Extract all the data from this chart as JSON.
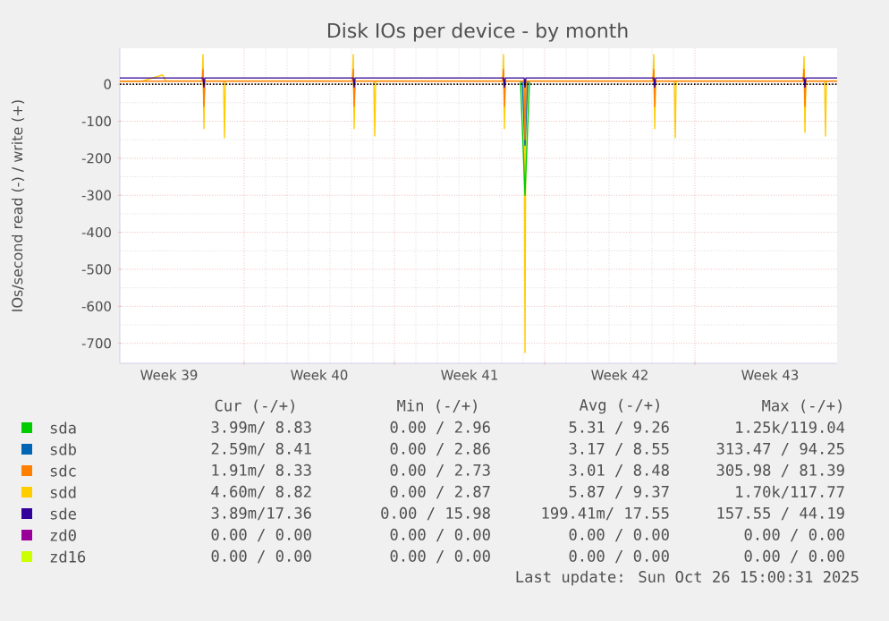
{
  "chart_data": {
    "type": "line",
    "title": "Disk IOs per device - by month",
    "ylabel": "IOs/second read (-) / write (+)",
    "xlim": [
      "2025-09-23T05:00",
      "2025-10-26T15:00"
    ],
    "ylim": [
      -754,
      97
    ],
    "xticks": [
      {
        "value": "2025-09-25T12:00",
        "label": "Week 39"
      },
      {
        "value": "2025-09-29",
        "label": null
      },
      {
        "value": "2025-10-02T12:00",
        "label": "Week 40"
      },
      {
        "value": "2025-10-06",
        "label": null
      },
      {
        "value": "2025-10-09T12:00",
        "label": "Week 41"
      },
      {
        "value": "2025-10-13",
        "label": null
      },
      {
        "value": "2025-10-16T12:00",
        "label": "Week 42"
      },
      {
        "value": "2025-10-20",
        "label": null
      },
      {
        "value": "2025-10-23T12:00",
        "label": "Week 43"
      }
    ],
    "yticks": [
      -700,
      -600,
      -500,
      -400,
      -300,
      -200,
      -100,
      0
    ],
    "grid": true,
    "legend": "bottom",
    "ref_lines": [
      {
        "axis": "y",
        "value": 0,
        "color": "#000000",
        "line_style": "dotted"
      }
    ],
    "series": [
      {
        "name": "sda",
        "color": "#00cc00",
        "x": [
          "2025-10-11T21:00",
          "2025-10-12T02:00",
          "2025-10-12T07:00"
        ],
        "values": [
          8,
          -300,
          8
        ]
      },
      {
        "name": "sdb",
        "color": "#0066b3",
        "x": [
          "2025-10-11T23:00",
          "2025-10-12T02:00",
          "2025-10-12T05:00"
        ],
        "values": [
          8,
          -165,
          8
        ]
      },
      {
        "name": "sdc",
        "color": "#ff7f00",
        "x": [
          "2025-09-23T05:00",
          "2025-09-27T01:00",
          "2025-09-27T02:00",
          "2025-09-27T03:00",
          "2025-09-27T04:00",
          "2025-10-04T01:00",
          "2025-10-04T02:00",
          "2025-10-04T03:00",
          "2025-10-04T04:00",
          "2025-10-11T01:00",
          "2025-10-11T02:00",
          "2025-10-11T03:00",
          "2025-10-11T04:00",
          "2025-10-12T01:00",
          "2025-10-12T02:00",
          "2025-10-12T03:00",
          "2025-10-18T01:00",
          "2025-10-18T02:00",
          "2025-10-18T03:00",
          "2025-10-18T04:00",
          "2025-10-25T01:00",
          "2025-10-25T02:00",
          "2025-10-25T03:00",
          "2025-10-25T04:00",
          "2025-10-26T15:00"
        ],
        "values": [
          8,
          8,
          40,
          -60,
          8,
          8,
          40,
          -60,
          8,
          8,
          40,
          -60,
          8,
          8,
          -150,
          8,
          8,
          40,
          -60,
          8,
          8,
          40,
          -60,
          8,
          8
        ]
      },
      {
        "name": "sdd",
        "color": "#ffcc00",
        "x": [
          "2025-09-23T05:00",
          "2025-09-24T05:00",
          "2025-09-25T05:00",
          "2025-09-25T08:00",
          "2025-09-27T01:00",
          "2025-09-27T02:00",
          "2025-09-27T03:00",
          "2025-09-27T04:00",
          "2025-09-28T01:00",
          "2025-09-28T02:00",
          "2025-09-28T03:00",
          "2025-10-04T01:00",
          "2025-10-04T02:00",
          "2025-10-04T03:00",
          "2025-10-04T04:00",
          "2025-10-05T01:00",
          "2025-10-05T02:00",
          "2025-10-05T03:00",
          "2025-10-11T01:00",
          "2025-10-11T02:00",
          "2025-10-11T03:00",
          "2025-10-11T04:00",
          "2025-10-12T01:00",
          "2025-10-12T02:00",
          "2025-10-12T03:00",
          "2025-10-18T01:00",
          "2025-10-18T02:00",
          "2025-10-18T03:00",
          "2025-10-18T04:00",
          "2025-10-19T01:00",
          "2025-10-19T02:00",
          "2025-10-19T03:00",
          "2025-10-25T01:00",
          "2025-10-25T02:00",
          "2025-10-25T03:00",
          "2025-10-25T04:00",
          "2025-10-26T01:00",
          "2025-10-26T02:00",
          "2025-10-26T03:00",
          "2025-10-26T15:00"
        ],
        "values": [
          8,
          8,
          25,
          9,
          9,
          80,
          -120,
          9,
          9,
          -145,
          9,
          9,
          80,
          -120,
          9,
          9,
          -140,
          9,
          9,
          80,
          -120,
          9,
          9,
          -725,
          9,
          9,
          80,
          -120,
          9,
          9,
          -145,
          9,
          9,
          75,
          -130,
          9,
          9,
          -140,
          9,
          9
        ]
      },
      {
        "name": "sde",
        "color": "#330099",
        "x": [
          "2025-09-23T05:00",
          "2025-09-27T02:00",
          "2025-09-27T03:00",
          "2025-09-27T04:00",
          "2025-10-04T02:00",
          "2025-10-04T03:00",
          "2025-10-04T04:00",
          "2025-10-11T02:00",
          "2025-10-11T03:00",
          "2025-10-11T04:00",
          "2025-10-12T01:00",
          "2025-10-12T02:00",
          "2025-10-12T03:00",
          "2025-10-18T02:00",
          "2025-10-18T03:00",
          "2025-10-18T04:00",
          "2025-10-25T02:00",
          "2025-10-25T03:00",
          "2025-10-25T04:00",
          "2025-10-26T15:00"
        ],
        "values": [
          17,
          17,
          -8,
          17,
          17,
          -8,
          17,
          17,
          -8,
          17,
          17,
          -8,
          17,
          17,
          -8,
          17,
          17,
          -8,
          17,
          17
        ]
      },
      {
        "name": "zd0",
        "color": "#990099"
      },
      {
        "name": "zd16",
        "color": "#ccff00"
      }
    ],
    "annotations": [
      "Cur (-/+)",
      "Min (-/+)",
      "Avg (-/+)",
      "Max (-/+)",
      "3.99m/ 8.83",
      "0.00 / 2.96",
      "5.31 / 9.26",
      "1.25k/119.04",
      "2.59m/ 8.41",
      "0.00 / 2.86",
      "3.17 / 8.55",
      "313.47 / 94.25",
      "1.91m/ 8.33",
      "0.00 / 2.73",
      "3.01 / 8.48",
      "305.98 / 81.39",
      "4.60m/ 8.82",
      "0.00 / 2.87",
      "5.87 / 9.37",
      "1.70k/117.77",
      "3.89m/17.36",
      "0.00 / 15.98",
      "199.41m/ 17.55",
      "157.55 / 44.19",
      "0.00 / 0.00",
      "0.00 / 0.00",
      "0.00 / 0.00",
      "0.00 / 0.00",
      "0.00 / 0.00",
      "0.00 / 0.00",
      "0.00 / 0.00",
      "0.00 / 0.00",
      "Last update: Sun Oct 26 15:00:31 2025"
    ]
  }
}
